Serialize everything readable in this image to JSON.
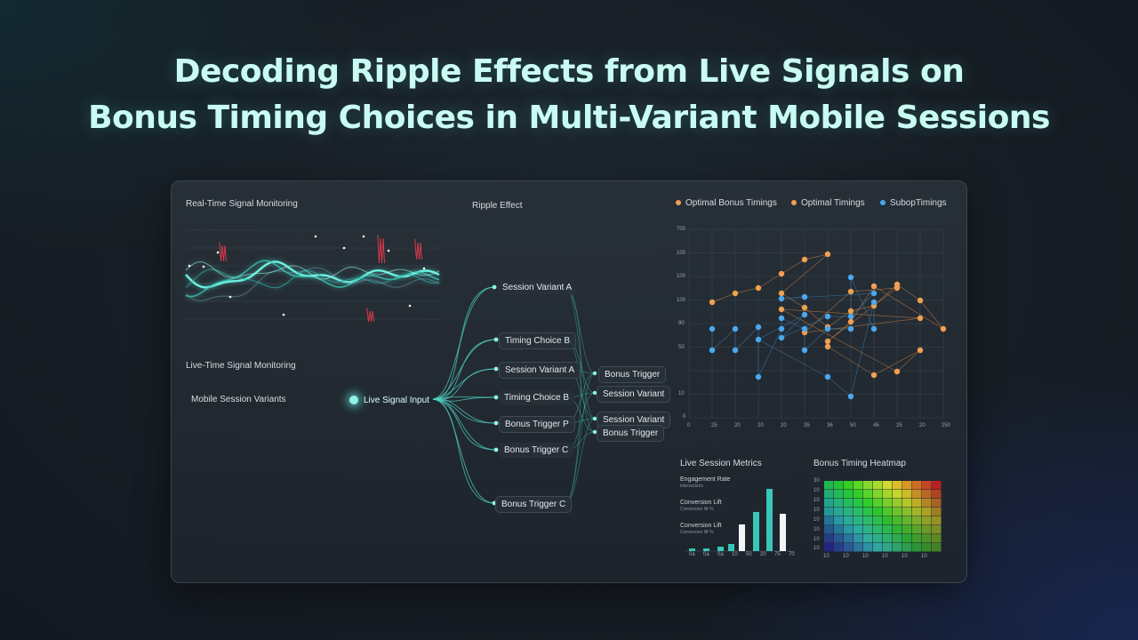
{
  "title_line1": "Decoding Ripple Effects from Live Signals on",
  "title_line2": "Bonus Timing Choices in Multi-Variant Mobile Sessions",
  "left": {
    "heading1": "Real-Time Signal Monitoring",
    "heading2": "Live-Time Signal Monitoring",
    "variants_label": "Mobile Session Variants"
  },
  "ripple": {
    "heading": "Ripple Effect",
    "input_label": "Live Signal Input",
    "nodes": [
      "Session Variant A",
      "Timing Choice B",
      "Session Variant A",
      "Timing Choice B",
      "Bonus Trigger P",
      "Bonus Trigger C",
      "Bonus Trigger C"
    ],
    "right_nodes": [
      "Bonus Trigger",
      "Session Variant",
      "Session Variant",
      "Bonus Trigger"
    ]
  },
  "scatter": {
    "legend": [
      "Optimal Bonus Timings",
      "Optimal Timings",
      "SubopTimings"
    ],
    "colors": {
      "orange": "#f0a052",
      "blue": "#4aa8f0"
    },
    "yticks": [
      "700",
      "100",
      "100",
      "100",
      "90",
      "50",
      "10",
      "0"
    ],
    "xticks": [
      "0",
      "25",
      "20",
      "20",
      "20",
      "35",
      "36",
      "50",
      "45",
      "25",
      "20",
      "250"
    ]
  },
  "metrics": {
    "heading": "Live Session Metrics",
    "items": [
      {
        "label": "Engagement Rate",
        "sub": "Interactions"
      },
      {
        "label": "Conversion Lift",
        "sub": "Conversion lift %"
      },
      {
        "label": "Conversion Lift",
        "sub": "Conversion lift %"
      }
    ],
    "xticks": [
      "0a",
      "0a",
      "0a",
      "10",
      "50",
      "20",
      "75",
      "70"
    ]
  },
  "heatmap": {
    "heading": "Bonus Timing Heatmap",
    "yticks": [
      "30",
      "10",
      "10",
      "10",
      "10",
      "10",
      "10",
      "10"
    ],
    "xticks": [
      "10",
      "10",
      "10",
      "10",
      "10",
      "10"
    ]
  }
}
